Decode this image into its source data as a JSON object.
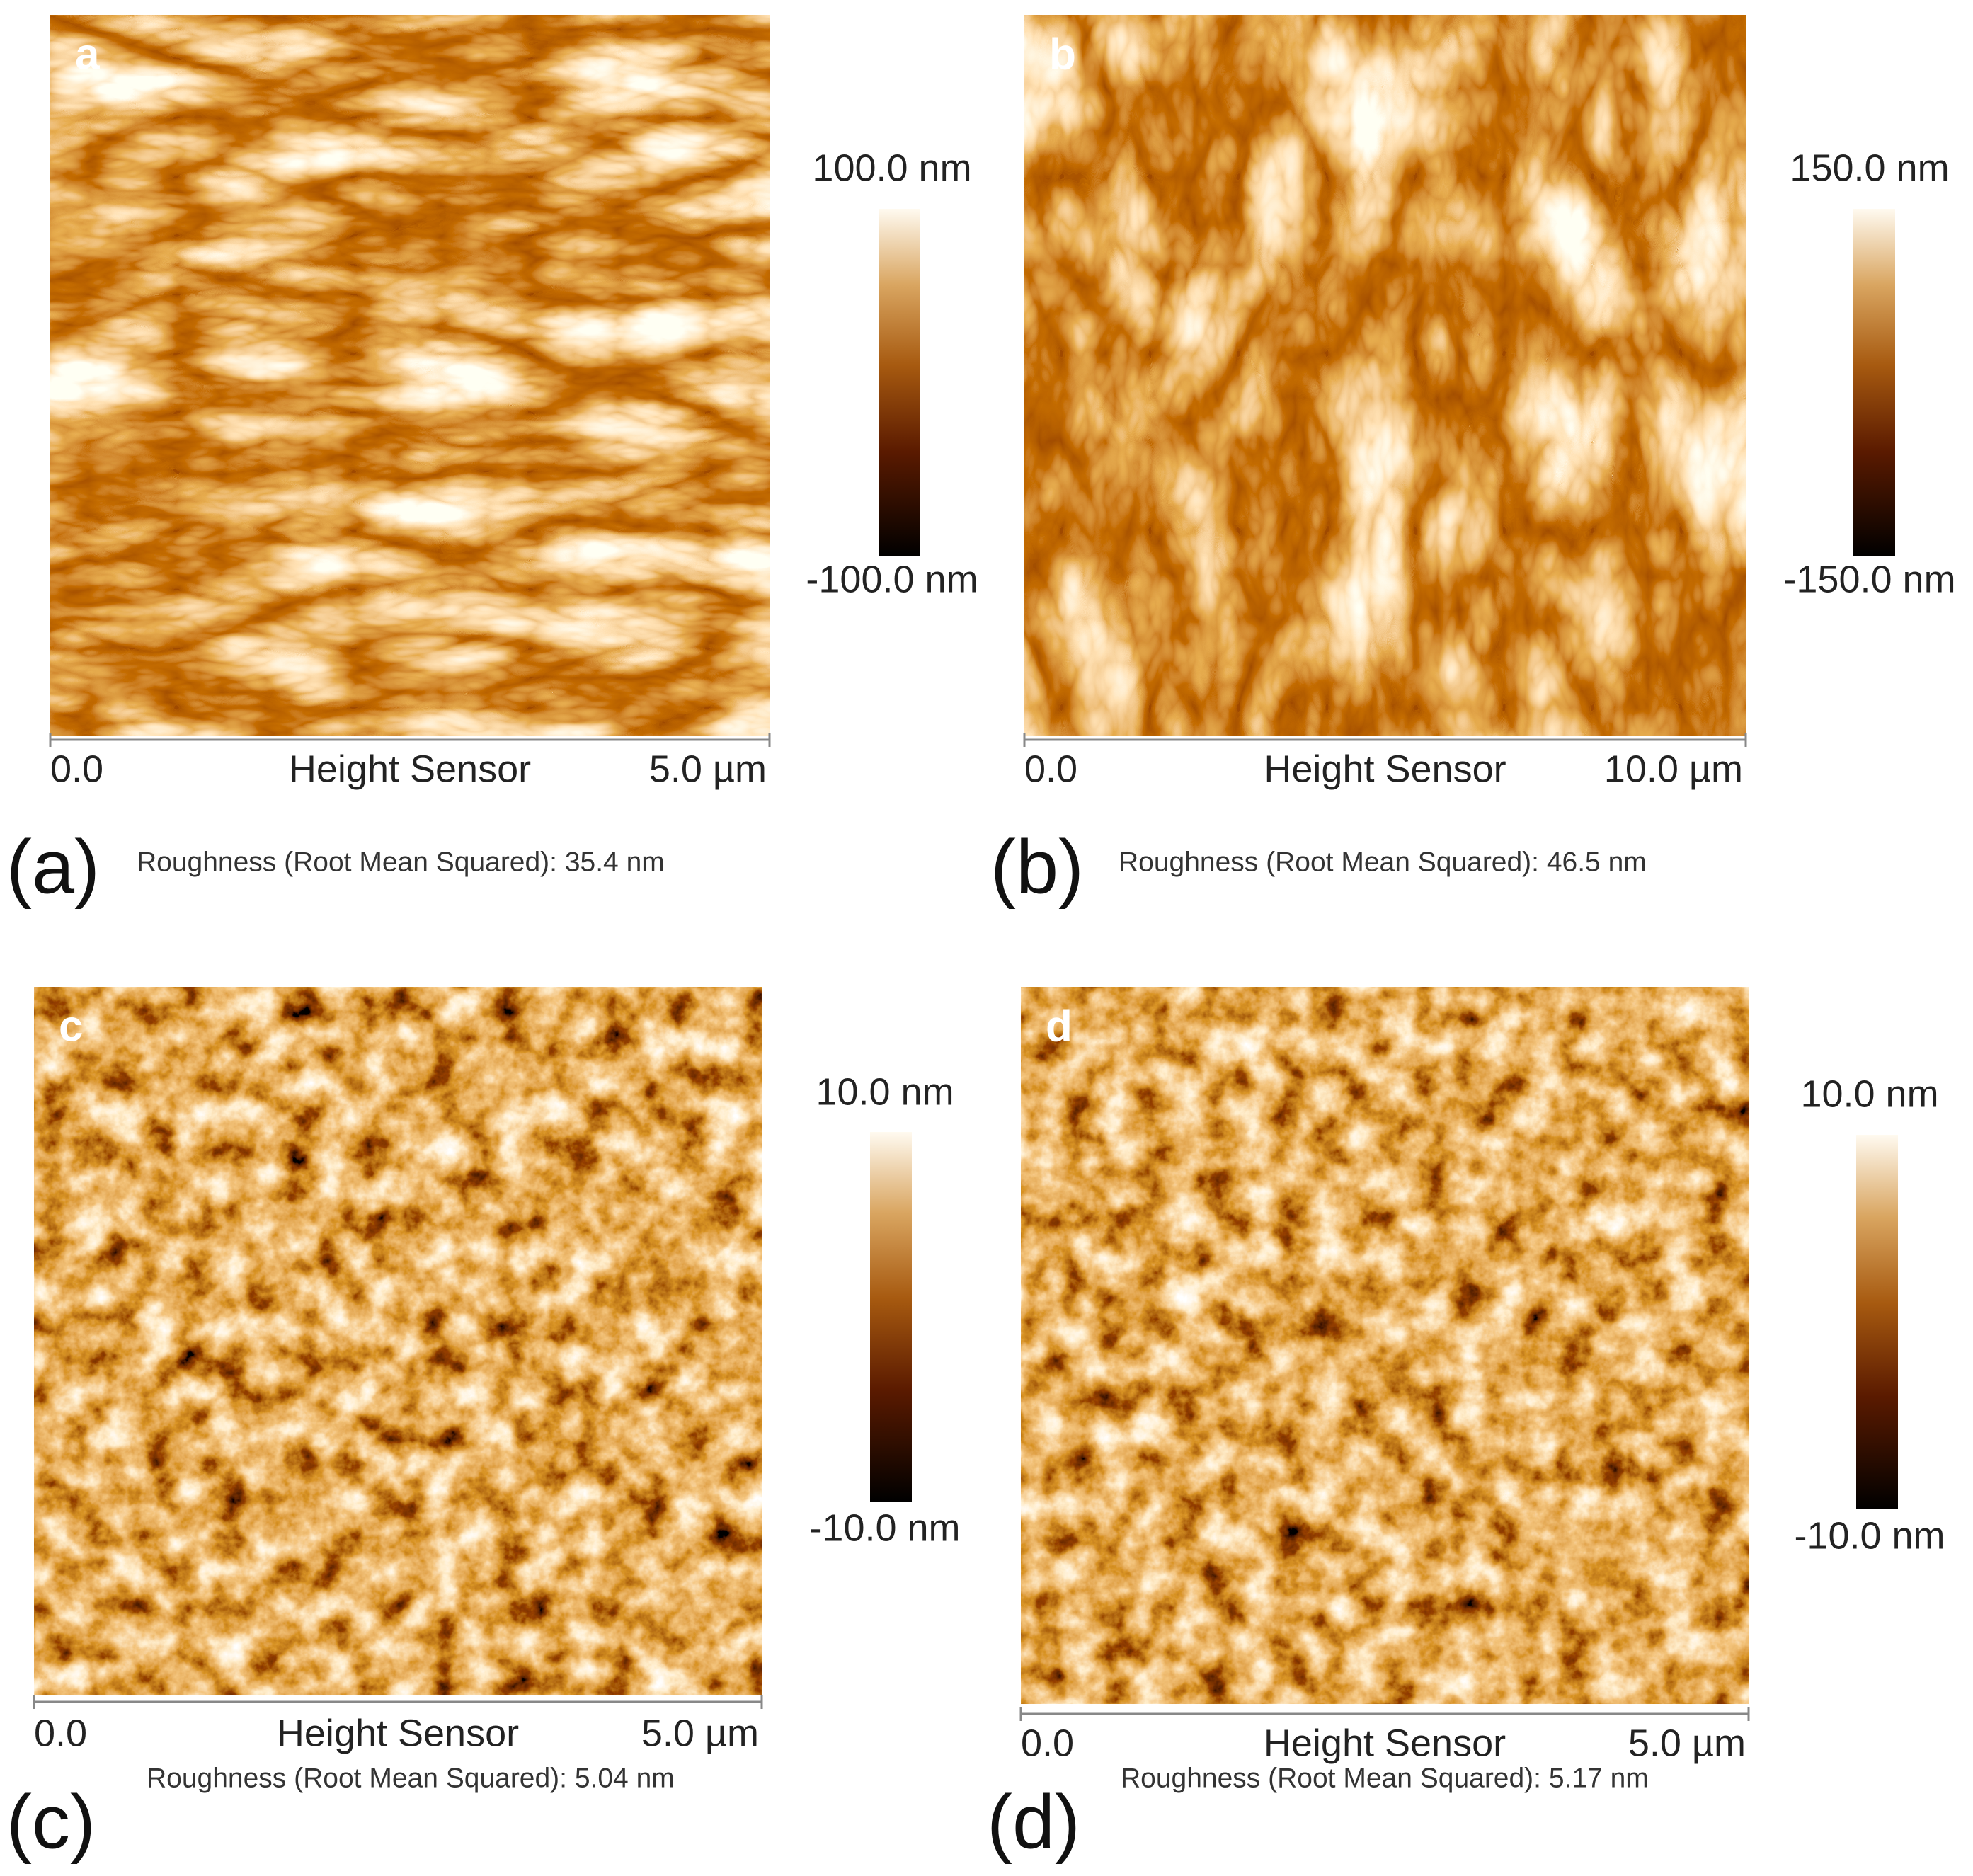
{
  "panels": [
    {
      "letter": "a",
      "caption": "(a)",
      "scale_max": "100.0 nm",
      "scale_min": "-100.0 nm",
      "x_start": "0.0",
      "x_label": "Height Sensor",
      "x_end": "5.0 µm",
      "roughness": "Roughness (Root Mean Squared): 35.4 nm"
    },
    {
      "letter": "b",
      "caption": "(b)",
      "scale_max": "150.0 nm",
      "scale_min": "-150.0 nm",
      "x_start": "0.0",
      "x_label": "Height Sensor",
      "x_end": "10.0 µm",
      "roughness": "Roughness (Root Mean Squared): 46.5 nm"
    },
    {
      "letter": "c",
      "caption": "(c)",
      "scale_max": "10.0 nm",
      "scale_min": "-10.0 nm",
      "x_start": "0.0",
      "x_label": "Height Sensor",
      "x_end": "5.0 µm",
      "roughness": "Roughness (Root Mean Squared): 5.04 nm"
    },
    {
      "letter": "d",
      "caption": "(d)",
      "scale_max": "10.0 nm",
      "scale_min": "-10.0 nm",
      "x_start": "0.0",
      "x_label": "Height Sensor",
      "x_end": "5.0 µm",
      "roughness": "Roughness (Root Mean Squared): 5.17 nm"
    }
  ]
}
